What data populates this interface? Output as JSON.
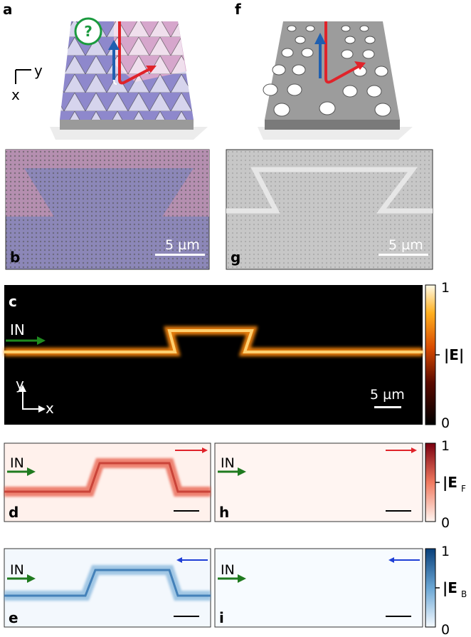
{
  "panels": {
    "a": {
      "label": "a",
      "axis_y": "y",
      "axis_x": "x",
      "question": "?"
    },
    "f": {
      "label": "f"
    },
    "b": {
      "label": "b",
      "scalebar": "5 µm"
    },
    "g": {
      "label": "g",
      "scalebar": "5 µm"
    },
    "c": {
      "label": "c",
      "input": "IN",
      "axis_y": "y",
      "axis_x": "x",
      "scalebar": "5 µm"
    },
    "d": {
      "label": "d",
      "input": "IN"
    },
    "h": {
      "label": "h",
      "input": "IN"
    },
    "e": {
      "label": "e",
      "input": "IN"
    },
    "i": {
      "label": "i",
      "input": "IN"
    }
  },
  "colorbars": {
    "E": {
      "max": "1",
      "min": "0",
      "label": "|E|"
    },
    "EF": {
      "max": "1",
      "min": "0",
      "label_main": "|E",
      "label_sub": "F"
    },
    "EB": {
      "max": "1",
      "min": "0",
      "label_main": "|E",
      "label_sub": "B"
    }
  },
  "colors": {
    "forward_arrow": "#e0232a",
    "backward_arrow": "#1f4fd6",
    "input_arrow": "#1f7a1f",
    "kagome_blue": "#8e88cc",
    "kagome_pink": "#d6a6cc",
    "field_hot": "#ff9a1a",
    "field_red": "#c0342c",
    "field_blue": "#2d6fae"
  }
}
